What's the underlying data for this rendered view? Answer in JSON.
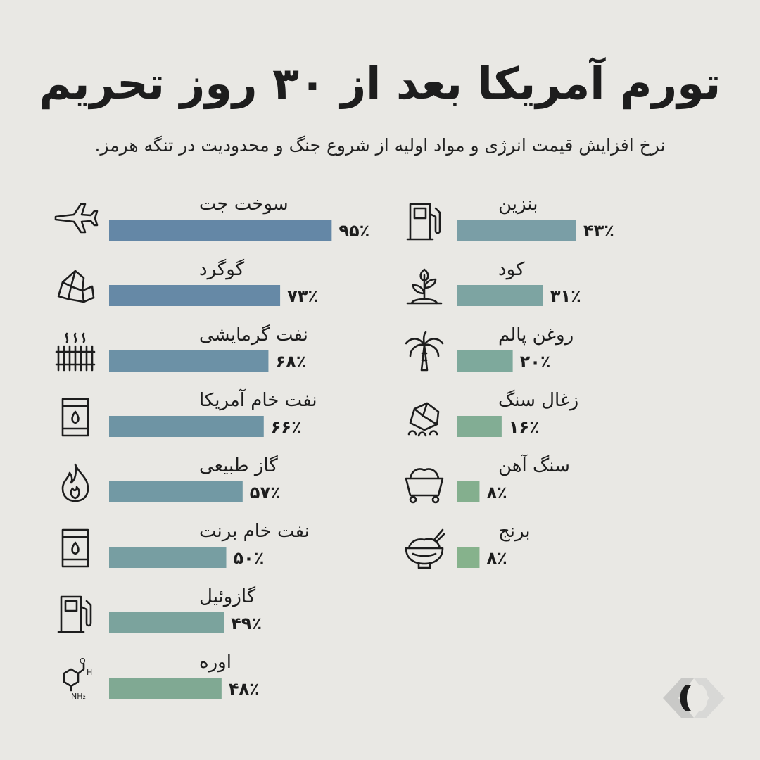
{
  "title": "تورم آمریکا بعد از ۳۰ روز تحریم",
  "subtitle": "نرخ افزایش قیمت انرژی و مواد اولیه از شروع جنگ و محدودیت در تنگه هرمز.",
  "chart_data": {
    "type": "bar",
    "orientation": "horizontal",
    "unit": "%",
    "columns": [
      {
        "items": [
          {
            "label": "سوخت جت",
            "value": 95,
            "value_label": "۹۵٪",
            "icon": "airplane-icon",
            "color": "#6487a6"
          },
          {
            "label": "گوگرد",
            "value": 73,
            "value_label": "۷۳٪",
            "icon": "sulfur-crystal-icon",
            "color": "#6689a6"
          },
          {
            "label": "نفت گرمایشی",
            "value": 68,
            "value_label": "۶۸٪",
            "icon": "radiator-icon",
            "color": "#6c91a6"
          },
          {
            "label": "نفت خام آمریکا",
            "value": 66,
            "value_label": "۶۶٪",
            "icon": "oil-barrel-icon",
            "color": "#6e94a4"
          },
          {
            "label": "گاز طبیعی",
            "value": 57,
            "value_label": "۵۷٪",
            "icon": "flame-icon",
            "color": "#7299a4"
          },
          {
            "label": "نفت خام برنت",
            "value": 50,
            "value_label": "۵۰٪",
            "icon": "oil-barrel-icon",
            "color": "#779ea2"
          },
          {
            "label": "گازوئیل",
            "value": 49,
            "value_label": "۴۹٪",
            "icon": "fuel-pump-icon",
            "color": "#7ba39d"
          },
          {
            "label": "اوره",
            "value": 48,
            "value_label": "۴۸٪",
            "icon": "urea-molecule-icon",
            "color": "#80a993"
          }
        ]
      },
      {
        "items": [
          {
            "label": "بنزین",
            "value": 43,
            "value_label": "۴۳٪",
            "icon": "fuel-pump-icon",
            "color": "#7a9ea6"
          },
          {
            "label": "کود",
            "value": 31,
            "value_label": "۳۱٪",
            "icon": "plant-sprout-icon",
            "color": "#7da4a2"
          },
          {
            "label": "روغن پالم",
            "value": 20,
            "value_label": "۲۰٪",
            "icon": "palm-tree-icon",
            "color": "#7ea99c"
          },
          {
            "label": "زغال سنگ",
            "value": 16,
            "value_label": "۱۶٪",
            "icon": "coal-icon",
            "color": "#82ad94"
          },
          {
            "label": "سنگ آهن",
            "value": 8,
            "value_label": "۸٪",
            "icon": "mine-cart-icon",
            "color": "#84af8e"
          },
          {
            "label": "برنج",
            "value": 8,
            "value_label": "۸٪",
            "icon": "rice-bowl-icon",
            "color": "#86b28c"
          }
        ]
      }
    ]
  }
}
